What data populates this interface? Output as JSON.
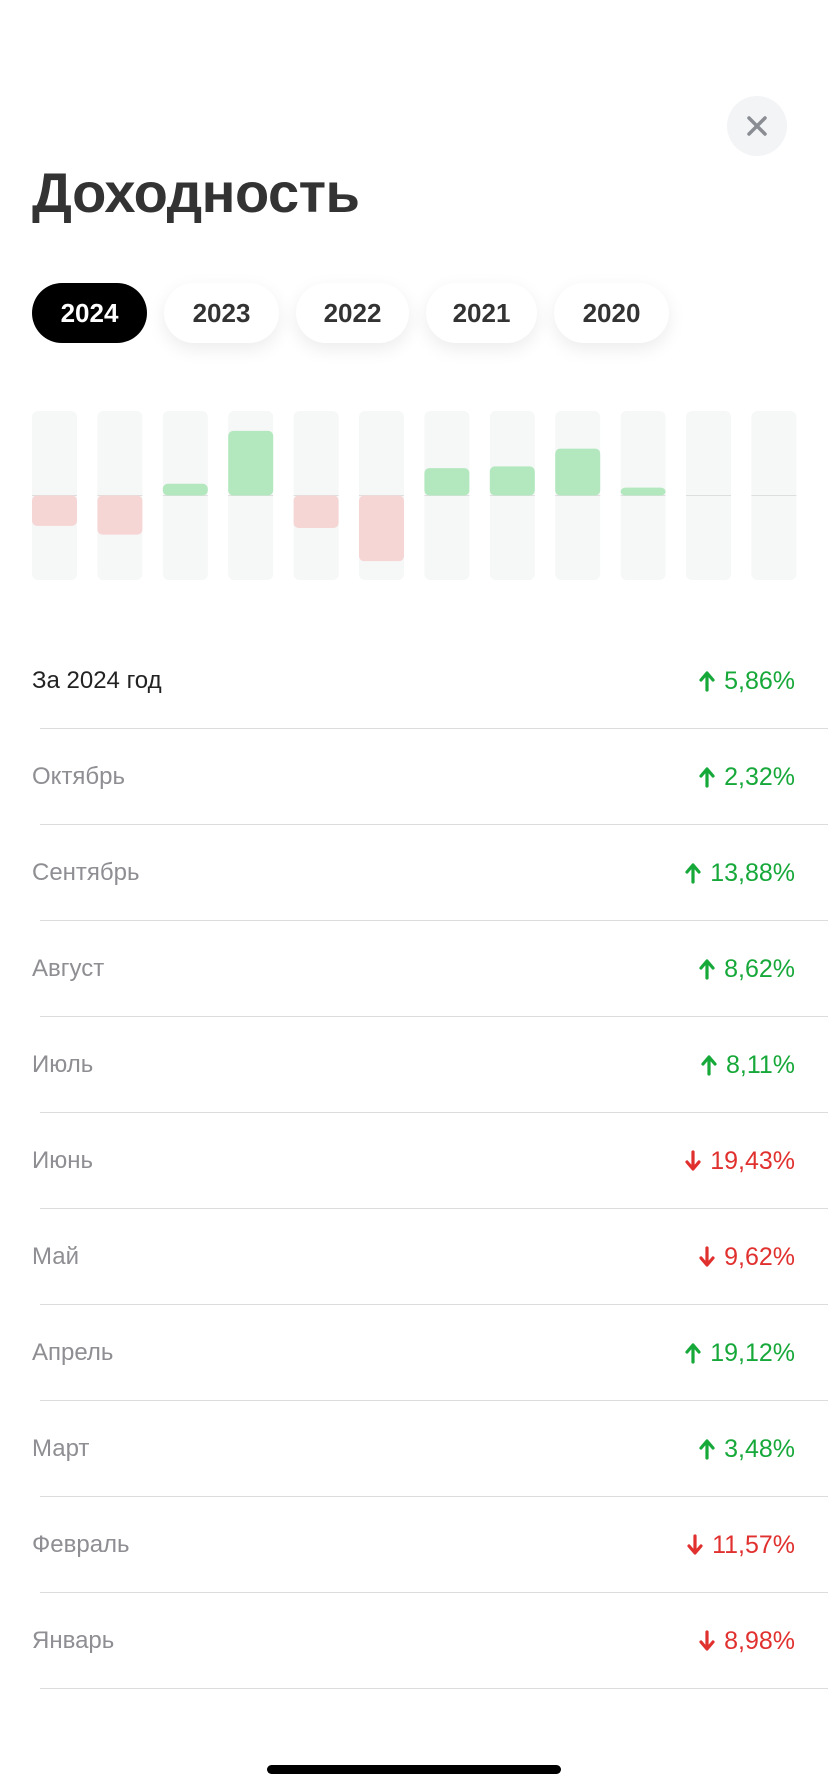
{
  "header": {
    "title": "Доходность"
  },
  "tabs": [
    {
      "label": "2024",
      "active": true
    },
    {
      "label": "2023",
      "active": false
    },
    {
      "label": "2022",
      "active": false
    },
    {
      "label": "2021",
      "active": false
    },
    {
      "label": "2020",
      "active": false
    }
  ],
  "chart": {
    "type": "bar",
    "ylim": [
      -25,
      25
    ],
    "up_color": "#b3e8bf",
    "down_color": "#f6d5d5",
    "track_color": "#f6f7f7"
  },
  "summary": {
    "label": "За 2024 год",
    "value": 5.86,
    "value_label": "5,86%"
  },
  "up_text_color": "#17a83a",
  "down_text_color": "#e0312f",
  "months": [
    {
      "label": "Октябрь",
      "value": 2.32,
      "value_label": "2,32%"
    },
    {
      "label": "Сентябрь",
      "value": 13.88,
      "value_label": "13,88%"
    },
    {
      "label": "Август",
      "value": 8.62,
      "value_label": "8,62%"
    },
    {
      "label": "Июль",
      "value": 8.11,
      "value_label": "8,11%"
    },
    {
      "label": "Июнь",
      "value": -19.43,
      "value_label": "19,43%"
    },
    {
      "label": "Май",
      "value": -9.62,
      "value_label": "9,62%"
    },
    {
      "label": "Апрель",
      "value": 19.12,
      "value_label": "19,12%"
    },
    {
      "label": "Март",
      "value": 3.48,
      "value_label": "3,48%"
    },
    {
      "label": "Февраль",
      "value": -11.57,
      "value_label": "11,57%"
    },
    {
      "label": "Январь",
      "value": -8.98,
      "value_label": "8,98%"
    }
  ]
}
